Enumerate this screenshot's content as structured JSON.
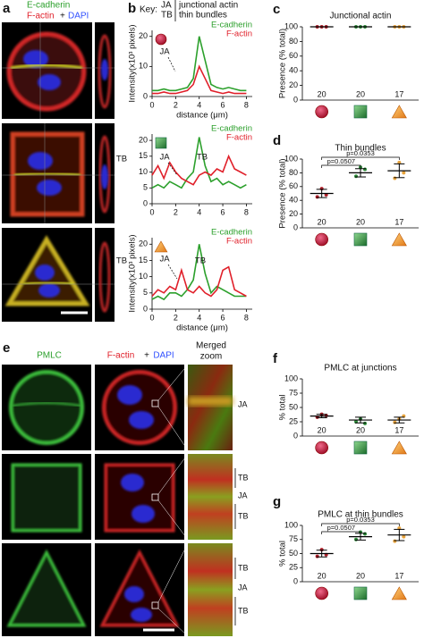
{
  "panel_labels": [
    "a",
    "b",
    "c",
    "d",
    "e",
    "f",
    "g"
  ],
  "panel_a": {
    "channels": [
      "E-cadherin",
      "F-actin",
      "+",
      "DAPI"
    ]
  },
  "key": {
    "title": "Key:",
    "rows": [
      [
        "JA",
        "junctional actin"
      ],
      [
        "TB",
        "thin bundles"
      ]
    ]
  },
  "panel_e": {
    "columns": [
      "PMLC",
      "F-actin",
      "+",
      "DAPI",
      "Merged",
      "zoom"
    ],
    "zoom_labels": [
      [
        "JA"
      ],
      [
        "TB",
        "JA",
        "TB"
      ],
      [
        "TB",
        "JA",
        "TB"
      ]
    ]
  },
  "chart_data": [
    {
      "type": "line",
      "x": [
        0,
        0.5,
        1,
        1.5,
        2,
        2.5,
        3,
        3.5,
        4,
        4.5,
        5,
        5.5,
        6,
        6.5,
        7,
        7.5,
        8
      ],
      "xlim": [
        0,
        8.5
      ],
      "xticks": [
        0,
        2,
        4,
        6,
        8
      ],
      "ylim": [
        0,
        22
      ],
      "yticks": [
        0,
        10,
        20
      ],
      "xlabel": "distance (μm)",
      "ylabel": "Intensity(x10³ pixels)",
      "series": [
        {
          "name": "E-cadherin",
          "color": "#2ca02c",
          "values": [
            2,
            2,
            2.5,
            2,
            2,
            2.5,
            3,
            6,
            20,
            12,
            4,
            3,
            2.5,
            3,
            2.5,
            2,
            2
          ]
        },
        {
          "name": "F-actin",
          "color": "#e0202a",
          "values": [
            1,
            1,
            1.5,
            1,
            1,
            1.5,
            2,
            4,
            10,
            6,
            2,
            1.5,
            1,
            1.5,
            1,
            1,
            1
          ]
        }
      ],
      "annotations": [
        "JA"
      ]
    },
    {
      "type": "line",
      "x": [
        0,
        0.5,
        1,
        1.5,
        2,
        2.5,
        3,
        3.5,
        4,
        4.5,
        5,
        5.5,
        6,
        6.5,
        7,
        7.5,
        8
      ],
      "xlim": [
        0,
        8.5
      ],
      "xticks": [
        0,
        2,
        4,
        6,
        8
      ],
      "ylim": [
        0,
        22
      ],
      "yticks": [
        0,
        5,
        10,
        15,
        20
      ],
      "series": [
        {
          "name": "E-cadherin",
          "color": "#2ca02c",
          "values": [
            5,
            6,
            5,
            7,
            6,
            5,
            8,
            10,
            21,
            12,
            7,
            8,
            6,
            7,
            6,
            5,
            6
          ]
        },
        {
          "name": "F-actin",
          "color": "#e0202a",
          "values": [
            9,
            12,
            8,
            13,
            10,
            8,
            7,
            6,
            9,
            10,
            9,
            11,
            10,
            15,
            11,
            10,
            9
          ]
        }
      ],
      "annotations": [
        "TB",
        "JA",
        "TB"
      ]
    },
    {
      "type": "line",
      "x": [
        0,
        0.5,
        1,
        1.5,
        2,
        2.5,
        3,
        3.5,
        4,
        4.5,
        5,
        5.5,
        6,
        6.5,
        7,
        7.5,
        8
      ],
      "xlim": [
        0,
        8.5
      ],
      "xticks": [
        0,
        2,
        4,
        6,
        8
      ],
      "ylim": [
        0,
        22
      ],
      "yticks": [
        0,
        5,
        10,
        15,
        20
      ],
      "xlabel": "distance (μm)",
      "ylabel": "Intensity(x10³ pixels)",
      "series": [
        {
          "name": "E-cadherin",
          "color": "#2ca02c",
          "values": [
            3,
            4,
            3,
            5,
            5,
            4,
            6,
            9,
            20,
            11,
            5,
            7,
            6,
            5,
            4,
            4,
            4
          ]
        },
        {
          "name": "F-actin",
          "color": "#e0202a",
          "values": [
            4,
            6,
            5,
            7,
            6,
            12,
            6,
            5,
            7,
            5,
            4,
            6,
            12,
            13,
            6,
            5,
            4
          ]
        }
      ],
      "annotations": [
        "TB",
        "JA",
        "TB"
      ]
    },
    {
      "type": "dot",
      "title": "Junctional actin",
      "ylabel": "Presence (% total)",
      "categories": [
        null,
        null,
        null
      ],
      "values": [
        100,
        100,
        100
      ],
      "errors": [
        0,
        0,
        0
      ],
      "points": [
        [
          100,
          100,
          100
        ],
        [
          100,
          100,
          100
        ],
        [
          100,
          100,
          100
        ]
      ],
      "point_colors": [
        "#b0202a",
        "#2e8b3a",
        "#e8a33c"
      ],
      "counts": [
        20,
        20,
        17
      ],
      "ylim": [
        0,
        100
      ],
      "yticks": [
        0,
        20,
        40,
        60,
        80,
        100
      ]
    },
    {
      "type": "dot",
      "title": "Thin bundles",
      "ylabel": "Presence (% total)",
      "categories": [
        null,
        null,
        null
      ],
      "values": [
        50,
        80,
        83
      ],
      "errors": [
        6,
        6,
        10
      ],
      "points": [
        [
          45,
          57,
          48
        ],
        [
          75,
          88,
          85
        ],
        [
          72,
          95,
          80
        ]
      ],
      "point_colors": [
        "#b0202a",
        "#2e8b3a",
        "#e8a33c"
      ],
      "counts": [
        20,
        20,
        17
      ],
      "ylim": [
        0,
        100
      ],
      "yticks": [
        0,
        20,
        40,
        60,
        80,
        100
      ],
      "annotations": [
        "p=0.0353",
        "p=0.0507"
      ]
    },
    {
      "type": "dot",
      "title": "PMLC at junctions",
      "ylabel": "% total",
      "categories": [
        null,
        null,
        null
      ],
      "values": [
        35,
        28,
        28
      ],
      "errors": [
        3,
        5,
        5
      ],
      "points": [
        [
          33,
          38,
          36
        ],
        [
          25,
          30,
          22
        ],
        [
          24,
          30,
          35
        ]
      ],
      "point_colors": [
        "#b0202a",
        "#2e8b3a",
        "#e8a33c"
      ],
      "counts": [
        20,
        20,
        17
      ],
      "ylim": [
        0,
        100
      ],
      "yticks": [
        0,
        25,
        50,
        75,
        100
      ]
    },
    {
      "type": "dot",
      "title": "PMLC at thin bundles",
      "ylabel": "% total",
      "categories": [
        null,
        null,
        null
      ],
      "values": [
        50,
        80,
        83
      ],
      "errors": [
        6,
        6,
        10
      ],
      "points": [
        [
          45,
          57,
          48
        ],
        [
          75,
          88,
          85
        ],
        [
          72,
          95,
          80
        ]
      ],
      "point_colors": [
        "#b0202a",
        "#2e8b3a",
        "#e8a33c"
      ],
      "counts": [
        20,
        20,
        17
      ],
      "ylim": [
        0,
        100
      ],
      "yticks": [
        0,
        25,
        50,
        75,
        100
      ],
      "annotations": [
        "p=0.0353",
        "p=0.0507"
      ]
    }
  ]
}
